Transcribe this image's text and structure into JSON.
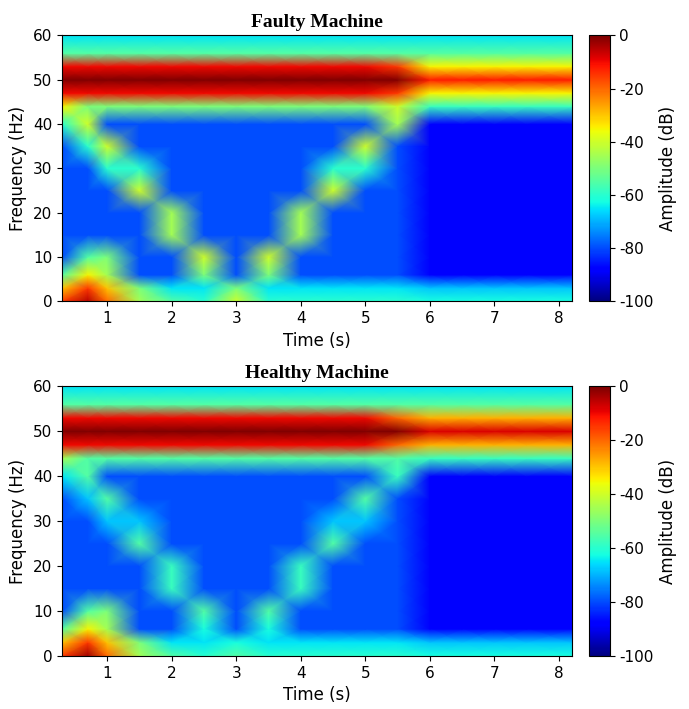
{
  "chart_data": [
    {
      "type": "heatmap",
      "title": "Faulty Machine",
      "x_label": "Time (s)",
      "y_label": "Frequency (Hz)",
      "x": [
        0.3,
        0.7,
        1.0,
        1.5,
        2.0,
        2.5,
        3.0,
        3.5,
        4.0,
        4.5,
        5.0,
        5.5,
        6.0,
        6.5,
        7.0,
        7.5,
        8.2
      ],
      "y": [
        0,
        3,
        6,
        10,
        15,
        20,
        25,
        30,
        35,
        40,
        44,
        47,
        50,
        53,
        56,
        60
      ],
      "cells": [
        [
          -15,
          -5,
          -20,
          -45,
          -55,
          -60,
          -40,
          -60,
          -60,
          -60,
          -60,
          -60,
          -62,
          -62,
          -62,
          -62,
          -62
        ],
        [
          -30,
          -15,
          -30,
          -50,
          -65,
          -65,
          -50,
          -65,
          -65,
          -65,
          -65,
          -65,
          -68,
          -68,
          -68,
          -68,
          -68
        ],
        [
          -55,
          -35,
          -45,
          -80,
          -80,
          -50,
          -80,
          -50,
          -80,
          -80,
          -80,
          -80,
          -88,
          -88,
          -88,
          -88,
          -88
        ],
        [
          -80,
          -55,
          -50,
          -80,
          -80,
          -40,
          -80,
          -40,
          -80,
          -80,
          -80,
          -80,
          -88,
          -88,
          -88,
          -88,
          -88
        ],
        [
          -80,
          -80,
          -80,
          -80,
          -45,
          -80,
          -80,
          -80,
          -45,
          -80,
          -80,
          -80,
          -88,
          -88,
          -88,
          -88,
          -88
        ],
        [
          -80,
          -80,
          -80,
          -80,
          -45,
          -80,
          -80,
          -80,
          -45,
          -80,
          -80,
          -80,
          -88,
          -88,
          -88,
          -88,
          -88
        ],
        [
          -80,
          -80,
          -80,
          -40,
          -80,
          -80,
          -80,
          -80,
          -80,
          -40,
          -80,
          -80,
          -88,
          -88,
          -88,
          -88,
          -88
        ],
        [
          -80,
          -80,
          -60,
          -60,
          -80,
          -80,
          -80,
          -80,
          -80,
          -60,
          -60,
          -80,
          -88,
          -88,
          -88,
          -88,
          -88
        ],
        [
          -80,
          -60,
          -40,
          -80,
          -80,
          -80,
          -80,
          -80,
          -80,
          -80,
          -40,
          -80,
          -88,
          -88,
          -88,
          -88,
          -88
        ],
        [
          -60,
          -40,
          -80,
          -80,
          -80,
          -80,
          -80,
          -80,
          -80,
          -80,
          -80,
          -45,
          -88,
          -88,
          -88,
          -88,
          -88
        ],
        [
          -35,
          -50,
          -50,
          -50,
          -50,
          -50,
          -50,
          -50,
          -50,
          -50,
          -50,
          -40,
          -58,
          -58,
          -58,
          -58,
          -58
        ],
        [
          -10,
          -10,
          -10,
          -10,
          -10,
          -10,
          -10,
          -10,
          -10,
          -10,
          -10,
          -15,
          -35,
          -35,
          -35,
          -35,
          -35
        ],
        [
          0,
          0,
          0,
          0,
          0,
          0,
          0,
          0,
          0,
          0,
          0,
          0,
          -12,
          -12,
          -12,
          -12,
          -12
        ],
        [
          -10,
          -10,
          -10,
          -10,
          -10,
          -10,
          -10,
          -10,
          -10,
          -10,
          -10,
          -15,
          -35,
          -35,
          -35,
          -35,
          -35
        ],
        [
          -55,
          -55,
          -55,
          -55,
          -55,
          -55,
          -55,
          -55,
          -55,
          -55,
          -55,
          -55,
          -55,
          -55,
          -55,
          -55,
          -55
        ],
        [
          -65,
          -65,
          -65,
          -65,
          -65,
          -65,
          -65,
          -65,
          -65,
          -65,
          -65,
          -65,
          -65,
          -65,
          -65,
          -65,
          -65
        ]
      ],
      "xlim": [
        0.3,
        8.2
      ],
      "ylim": [
        0,
        60
      ],
      "xticks": [
        1,
        2,
        3,
        4,
        5,
        6,
        7,
        8
      ],
      "yticks": [
        0,
        10,
        20,
        30,
        40,
        50,
        60
      ],
      "colorbar_label": "Amplitude (dB)",
      "colorbar_range": [
        -100,
        0
      ],
      "colorbar_ticks": [
        0,
        -20,
        -40,
        -60,
        -80,
        -100
      ]
    },
    {
      "type": "heatmap",
      "title": "Healthy Machine",
      "x_label": "Time (s)",
      "y_label": "Frequency (Hz)",
      "x": [
        0.3,
        0.7,
        1.0,
        1.5,
        2.0,
        2.5,
        3.0,
        3.5,
        4.0,
        4.5,
        5.0,
        5.5,
        6.0,
        6.5,
        7.0,
        7.5,
        8.2
      ],
      "y": [
        0,
        3,
        6,
        10,
        15,
        20,
        25,
        30,
        35,
        40,
        44,
        47,
        50,
        53,
        56,
        60
      ],
      "cells": [
        [
          -15,
          -3,
          -20,
          -45,
          -55,
          -60,
          -55,
          -60,
          -60,
          -60,
          -60,
          -60,
          -62,
          -62,
          -62,
          -62,
          -62
        ],
        [
          -30,
          -15,
          -30,
          -50,
          -65,
          -65,
          -62,
          -65,
          -65,
          -65,
          -65,
          -65,
          -68,
          -68,
          -68,
          -68,
          -68
        ],
        [
          -55,
          -35,
          -45,
          -80,
          -80,
          -62,
          -80,
          -62,
          -80,
          -80,
          -80,
          -80,
          -88,
          -88,
          -88,
          -88,
          -88
        ],
        [
          -80,
          -55,
          -50,
          -80,
          -80,
          -55,
          -80,
          -55,
          -80,
          -80,
          -80,
          -80,
          -88,
          -88,
          -88,
          -88,
          -88
        ],
        [
          -80,
          -80,
          -80,
          -80,
          -58,
          -80,
          -80,
          -80,
          -58,
          -80,
          -80,
          -80,
          -88,
          -88,
          -88,
          -88,
          -88
        ],
        [
          -80,
          -80,
          -80,
          -80,
          -58,
          -80,
          -80,
          -80,
          -58,
          -80,
          -80,
          -80,
          -88,
          -88,
          -88,
          -88,
          -88
        ],
        [
          -80,
          -80,
          -80,
          -55,
          -80,
          -80,
          -80,
          -80,
          -80,
          -55,
          -80,
          -80,
          -88,
          -88,
          -88,
          -88,
          -88
        ],
        [
          -80,
          -80,
          -68,
          -68,
          -80,
          -80,
          -80,
          -80,
          -80,
          -68,
          -68,
          -80,
          -88,
          -88,
          -88,
          -88,
          -88
        ],
        [
          -80,
          -68,
          -55,
          -80,
          -80,
          -80,
          -80,
          -80,
          -80,
          -80,
          -55,
          -80,
          -88,
          -88,
          -88,
          -88,
          -88
        ],
        [
          -65,
          -55,
          -80,
          -80,
          -80,
          -80,
          -80,
          -80,
          -80,
          -80,
          -80,
          -58,
          -88,
          -88,
          -88,
          -88,
          -88
        ],
        [
          -45,
          -55,
          -55,
          -55,
          -55,
          -55,
          -55,
          -55,
          -55,
          -55,
          -55,
          -55,
          -58,
          -58,
          -58,
          -58,
          -58
        ],
        [
          -10,
          -10,
          -10,
          -10,
          -10,
          -10,
          -10,
          -10,
          -10,
          -10,
          -10,
          -20,
          -28,
          -28,
          -28,
          -28,
          -28
        ],
        [
          0,
          0,
          0,
          0,
          0,
          0,
          0,
          0,
          0,
          0,
          0,
          0,
          -8,
          -8,
          -8,
          -8,
          -8
        ],
        [
          -10,
          -10,
          -10,
          -10,
          -10,
          -10,
          -10,
          -10,
          -10,
          -10,
          -10,
          -20,
          -28,
          -28,
          -28,
          -28,
          -28
        ],
        [
          -55,
          -55,
          -55,
          -55,
          -55,
          -55,
          -55,
          -55,
          -55,
          -55,
          -55,
          -55,
          -55,
          -55,
          -55,
          -55,
          -55
        ],
        [
          -65,
          -65,
          -65,
          -65,
          -65,
          -65,
          -65,
          -65,
          -65,
          -65,
          -65,
          -65,
          -65,
          -65,
          -65,
          -65,
          -65
        ]
      ],
      "xlim": [
        0.3,
        8.2
      ],
      "ylim": [
        0,
        60
      ],
      "xticks": [
        1,
        2,
        3,
        4,
        5,
        6,
        7,
        8
      ],
      "yticks": [
        0,
        10,
        20,
        30,
        40,
        50,
        60
      ],
      "colorbar_label": "Amplitude (dB)",
      "colorbar_range": [
        -100,
        0
      ],
      "colorbar_ticks": [
        0,
        -20,
        -40,
        -60,
        -80,
        -100
      ]
    }
  ]
}
